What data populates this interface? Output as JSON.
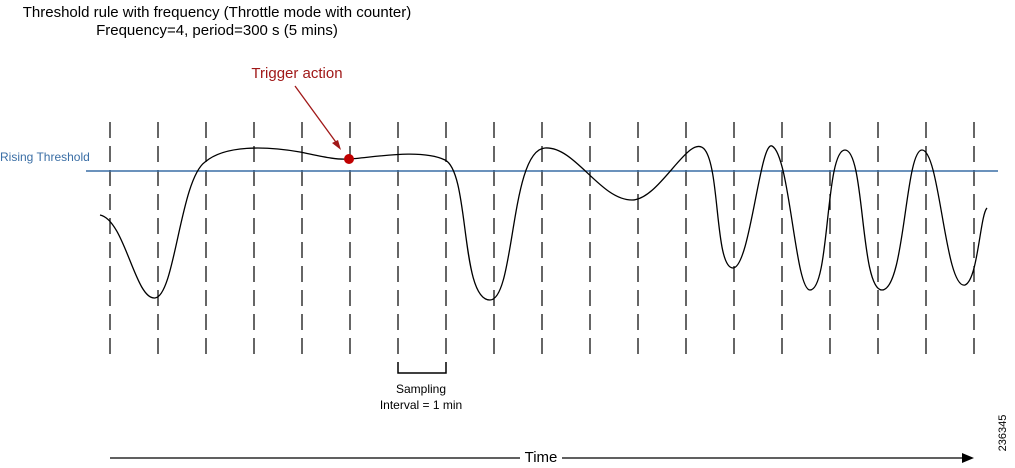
{
  "header": {
    "title": "Threshold rule with frequency (Throttle mode with counter)",
    "subtitle": "Frequency=4, period=300 s (5 mins)"
  },
  "labels": {
    "trigger": "Trigger action",
    "threshold": "Rising Threshold",
    "sampling": [
      "Sampling",
      "Interval = 1 min"
    ]
  },
  "axis": {
    "time": "Time"
  },
  "figure_id": "236345"
}
